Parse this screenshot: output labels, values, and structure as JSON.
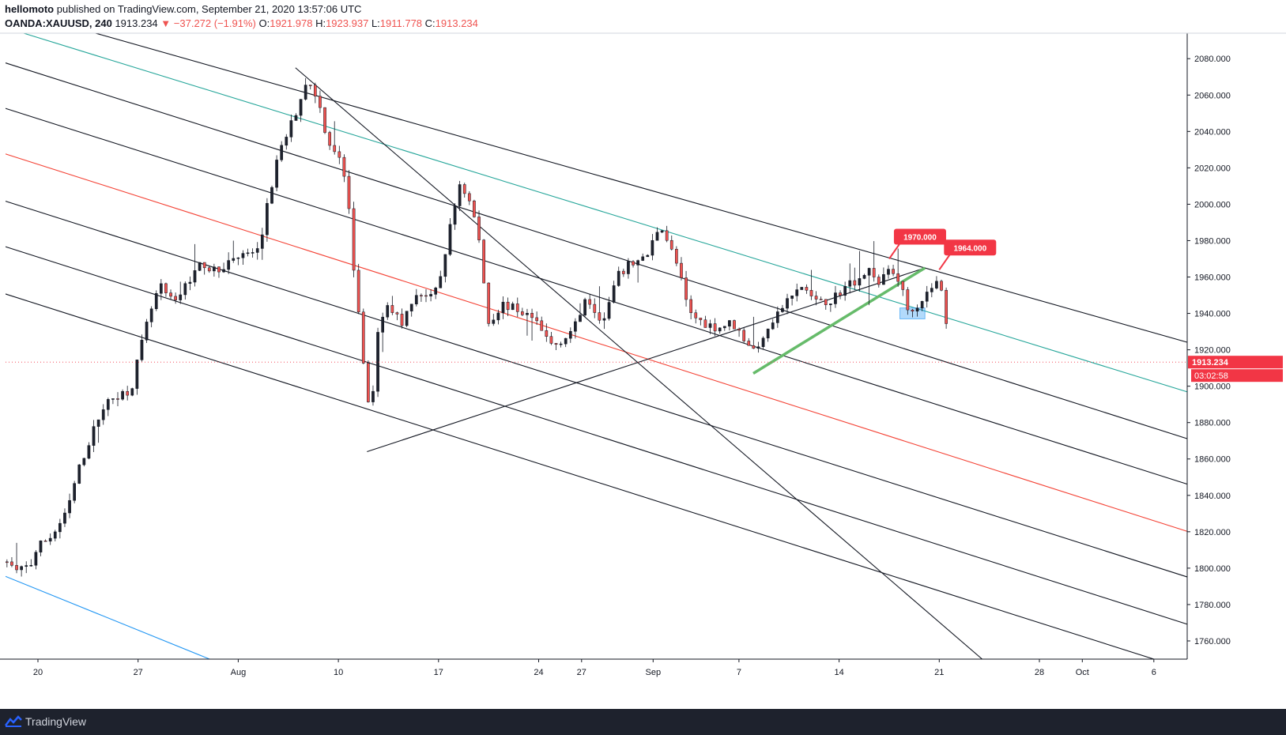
{
  "header": {
    "author": "hellomoto",
    "published": "published on TradingView.com, September 21, 2020 13:57:06 UTC",
    "symbol": "OANDA:XAUUSD, 240",
    "last": "1913.234",
    "change": "▼ −37.272 (−1.91%)",
    "o_label": "O:",
    "o_value": "1921.978",
    "h_label": "H:",
    "h_value": "1923.937",
    "l_label": "L:",
    "l_value": "1911.778",
    "c_label": "C:",
    "c_value": "1913.234"
  },
  "footer": {
    "brand": "TradingView",
    "logo_icon": "tradingview-logo-icon"
  },
  "colors": {
    "up": "#1e222d",
    "down": "#ef5350",
    "teal": "#26a69a",
    "red_line": "#f44336",
    "blue_line": "#2196f3",
    "green_line": "#66bb6a",
    "price_label": "#f23645"
  },
  "chart_data": {
    "type": "candlestick",
    "ylim": [
      1750,
      2094
    ],
    "y_ticks": [
      "1760.000",
      "1780.000",
      "1800.000",
      "1820.000",
      "1840.000",
      "1860.000",
      "1880.000",
      "1900.000",
      "1920.000",
      "1940.000",
      "1960.000",
      "1980.000",
      "2000.000",
      "2020.000",
      "2040.000",
      "2060.000",
      "2080.000"
    ],
    "x_ticks": [
      {
        "label": "20",
        "date": "2020-07-20"
      },
      {
        "label": "27",
        "date": "2020-07-27"
      },
      {
        "label": "Aug",
        "date": "2020-08-03"
      },
      {
        "label": "10",
        "date": "2020-08-10"
      },
      {
        "label": "17",
        "date": "2020-08-17"
      },
      {
        "label": "24",
        "date": "2020-08-24"
      },
      {
        "label": "27",
        "date": "2020-08-27"
      },
      {
        "label": "Sep",
        "date": "2020-09-01"
      },
      {
        "label": "7",
        "date": "2020-09-07"
      },
      {
        "label": "14",
        "date": "2020-09-14"
      },
      {
        "label": "21",
        "date": "2020-09-21"
      },
      {
        "label": "28",
        "date": "2020-09-28"
      },
      {
        "label": "Oct",
        "date": "2020-10-01"
      },
      {
        "label": "6",
        "date": "2020-10-06"
      }
    ],
    "price_path": [
      [
        "2020-07-17T12:00",
        1806
      ],
      [
        "2020-07-18T12:00",
        1798
      ],
      [
        "2020-07-19T12:00",
        1802
      ],
      [
        "2020-07-20T00:00",
        1812
      ],
      [
        "2020-07-21T00:00",
        1818
      ],
      [
        "2020-07-22T00:00",
        1830
      ],
      [
        "2020-07-22T18:00",
        1852
      ],
      [
        "2020-07-23T12:00",
        1868
      ],
      [
        "2020-07-24T12:00",
        1888
      ],
      [
        "2020-07-25T12:00",
        1895
      ],
      [
        "2020-07-26T12:00",
        1898
      ],
      [
        "2020-07-27T00:00",
        1915
      ],
      [
        "2020-07-27T18:00",
        1938
      ],
      [
        "2020-07-28T12:00",
        1955
      ],
      [
        "2020-07-29T12:00",
        1945
      ],
      [
        "2020-07-30T12:00",
        1958
      ],
      [
        "2020-07-31T12:00",
        1968
      ],
      [
        "2020-08-01T12:00",
        1962
      ],
      [
        "2020-08-02T12:00",
        1970
      ],
      [
        "2020-08-03T12:00",
        1972
      ],
      [
        "2020-08-04T12:00",
        1975
      ],
      [
        "2020-08-05T00:00",
        1998
      ],
      [
        "2020-08-05T18:00",
        2025
      ],
      [
        "2020-08-06T12:00",
        2040
      ],
      [
        "2020-08-07T06:00",
        2055
      ],
      [
        "2020-08-07T18:00",
        2068
      ],
      [
        "2020-08-08T12:00",
        2060
      ],
      [
        "2020-08-09T06:00",
        2035
      ],
      [
        "2020-08-09T18:00",
        2030
      ],
      [
        "2020-08-10T06:00",
        2022
      ],
      [
        "2020-08-10T18:00",
        1995
      ],
      [
        "2020-08-11T06:00",
        1950
      ],
      [
        "2020-08-11T18:00",
        1915
      ],
      [
        "2020-08-12T06:00",
        1880
      ],
      [
        "2020-08-12T18:00",
        1930
      ],
      [
        "2020-08-13T12:00",
        1945
      ],
      [
        "2020-08-14T12:00",
        1935
      ],
      [
        "2020-08-15T12:00",
        1952
      ],
      [
        "2020-08-16T12:00",
        1948
      ],
      [
        "2020-08-17T00:00",
        1955
      ],
      [
        "2020-08-17T18:00",
        1985
      ],
      [
        "2020-08-18T12:00",
        2012
      ],
      [
        "2020-08-19T06:00",
        2000
      ],
      [
        "2020-08-19T18:00",
        1985
      ],
      [
        "2020-08-20T12:00",
        1935
      ],
      [
        "2020-08-21T12:00",
        1945
      ],
      [
        "2020-08-22T12:00",
        1942
      ],
      [
        "2020-08-23T12:00",
        1938
      ],
      [
        "2020-08-24T00:00",
        1932
      ],
      [
        "2020-08-25T00:00",
        1922
      ],
      [
        "2020-08-26T00:00",
        1928
      ],
      [
        "2020-08-26T18:00",
        1935
      ],
      [
        "2020-08-27T06:00",
        1950
      ],
      [
        "2020-08-27T18:00",
        1945
      ],
      [
        "2020-08-28T12:00",
        1935
      ],
      [
        "2020-08-29T12:00",
        1960
      ],
      [
        "2020-08-30T12:00",
        1968
      ],
      [
        "2020-08-31T12:00",
        1970
      ],
      [
        "2020-09-01T12:00",
        1990
      ],
      [
        "2020-09-02T06:00",
        1975
      ],
      [
        "2020-09-02T18:00",
        1965
      ],
      [
        "2020-09-03T12:00",
        1940
      ],
      [
        "2020-09-04T12:00",
        1935
      ],
      [
        "2020-09-05T12:00",
        1932
      ],
      [
        "2020-09-06T12:00",
        1935
      ],
      [
        "2020-09-07T12:00",
        1925
      ],
      [
        "2020-09-08T06:00",
        1918
      ],
      [
        "2020-09-08T18:00",
        1930
      ],
      [
        "2020-09-09T12:00",
        1938
      ],
      [
        "2020-09-10T12:00",
        1948
      ],
      [
        "2020-09-11T12:00",
        1955
      ],
      [
        "2020-09-12T12:00",
        1945
      ],
      [
        "2020-09-13T12:00",
        1948
      ],
      [
        "2020-09-14T12:00",
        1955
      ],
      [
        "2020-09-15T12:00",
        1960
      ],
      [
        "2020-09-16T06:00",
        1965
      ],
      [
        "2020-09-16T18:00",
        1955
      ],
      [
        "2020-09-17T12:00",
        1965
      ],
      [
        "2020-09-18T06:00",
        1958
      ],
      [
        "2020-09-18T18:00",
        1942
      ],
      [
        "2020-09-19T12:00",
        1945
      ],
      [
        "2020-09-20T06:00",
        1952
      ],
      [
        "2020-09-20T18:00",
        1958
      ],
      [
        "2020-09-21T06:00",
        1950
      ],
      [
        "2020-09-21T12:00",
        1935
      ],
      [
        "2020-09-21T18:00",
        1913
      ]
    ],
    "lines": [
      {
        "color": "#131722",
        "p1": [
          "2020-07-11",
          2123
        ],
        "p2": [
          "2020-10-12",
          1916
        ]
      },
      {
        "color": "#131722",
        "p1": [
          "2020-07-16",
          2082
        ],
        "p2": [
          "2020-10-12",
          1862
        ]
      },
      {
        "color": "#26a69a",
        "p1": [
          "2020-07-19",
          2094
        ],
        "p2": [
          "2020-10-12",
          1888
        ]
      },
      {
        "color": "#131722",
        "p1": [
          "2020-07-16",
          2057
        ],
        "p2": [
          "2020-10-12",
          1837
        ]
      },
      {
        "color": "#f44336",
        "p1": [
          "2020-07-16",
          2032
        ],
        "p2": [
          "2020-10-12",
          1811
        ]
      },
      {
        "color": "#131722",
        "p1": [
          "2020-07-16",
          2006
        ],
        "p2": [
          "2020-10-12",
          1786
        ]
      },
      {
        "color": "#131722",
        "p1": [
          "2020-07-16",
          1981
        ],
        "p2": [
          "2020-10-12",
          1760
        ]
      },
      {
        "color": "#131722",
        "p1": [
          "2020-07-16",
          1955
        ],
        "p2": [
          "2020-10-12",
          1735
        ]
      },
      {
        "color": "#2196f3",
        "p1": [
          "2020-07-16",
          1801
        ],
        "p2": [
          "2020-08-01",
          1750
        ]
      },
      {
        "color": "#131722",
        "p1": [
          "2020-08-07",
          2075
        ],
        "p2": [
          "2020-09-24",
          1750
        ]
      },
      {
        "color": "#131722",
        "p1": [
          "2020-08-12",
          1864
        ],
        "p2": [
          "2020-09-20",
          1965
        ]
      },
      {
        "color": "#66bb6a",
        "p1": [
          "2020-09-08",
          1907
        ],
        "p2": [
          "2020-09-20",
          1965
        ]
      }
    ],
    "labels": [
      {
        "text": "1970.000",
        "x": "2020-09-17T12:00",
        "y": 1970
      },
      {
        "text": "1964.000",
        "x": "2020-09-21T00:00",
        "y": 1964
      }
    ],
    "highlight_box": {
      "x0": "2020-09-18T06:00",
      "x1": "2020-09-20T00:00",
      "y0": 1937,
      "y1": 1943
    },
    "current_price": "1913.234",
    "countdown": "03:02:58"
  }
}
